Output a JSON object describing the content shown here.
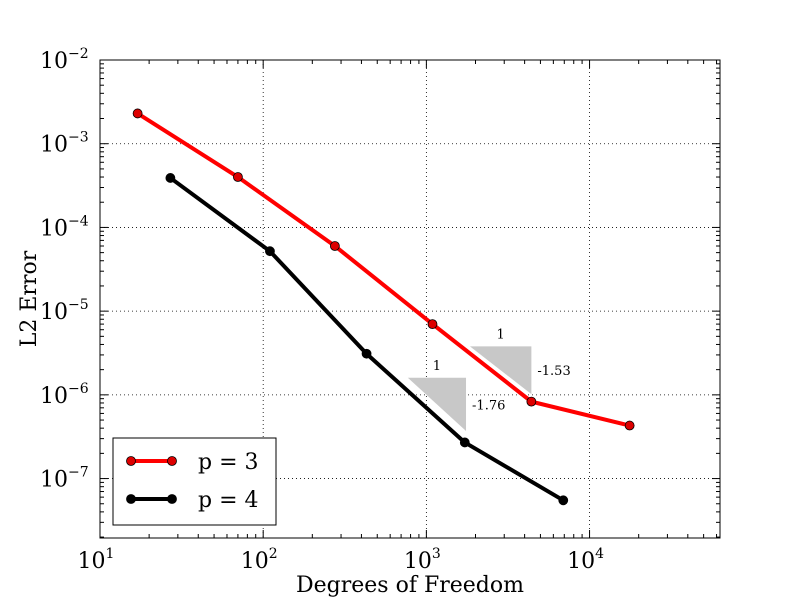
{
  "chart_data": {
    "type": "line",
    "xscale": "log",
    "yscale": "log",
    "xlabel": "Degrees of Freedom",
    "ylabel": "L2 Error",
    "xlim": [
      10,
      63000
    ],
    "ylim": [
      1.95e-08,
      0.01
    ],
    "grid": true,
    "legend_position": "bottom-left",
    "x_ticks": [
      {
        "base": "10",
        "exp": "1",
        "value": 10
      },
      {
        "base": "10",
        "exp": "2",
        "value": 100
      },
      {
        "base": "10",
        "exp": "3",
        "value": 1000
      },
      {
        "base": "10",
        "exp": "4",
        "value": 10000
      }
    ],
    "y_ticks": [
      {
        "base": "10",
        "exp": "−2",
        "value": 0.01
      },
      {
        "base": "10",
        "exp": "−3",
        "value": 0.001
      },
      {
        "base": "10",
        "exp": "−4",
        "value": 0.0001
      },
      {
        "base": "10",
        "exp": "−5",
        "value": 1e-05
      },
      {
        "base": "10",
        "exp": "−6",
        "value": 1e-06
      },
      {
        "base": "10",
        "exp": "−7",
        "value": 1e-07
      }
    ],
    "series": [
      {
        "name": "p = 3",
        "color": "#ff0000",
        "marker_color": "#dd0000",
        "x": [
          17,
          70,
          275,
          1090,
          4400,
          17600
        ],
        "y": [
          0.0023,
          0.0004,
          6e-05,
          7e-06,
          8.3e-07,
          4.3e-07
        ]
      },
      {
        "name": "p = 4",
        "color": "#000000",
        "marker_color": "#000000",
        "x": [
          27,
          110,
          430,
          1720,
          6900
        ],
        "y": [
          0.00039,
          5.2e-05,
          3.1e-06,
          2.7e-07,
          5.5e-08
        ]
      }
    ],
    "slope_triangles": [
      {
        "run_label": "1",
        "slope_label": "-1.53",
        "x0": 1850,
        "x1": 4400,
        "y_top": 3.8e-06,
        "y_bottom": 1.02e-06
      },
      {
        "run_label": "1",
        "slope_label": "-1.76",
        "x0": 770,
        "x1": 1750,
        "y_top": 1.6e-06,
        "y_bottom": 3.7e-07
      }
    ],
    "triangle_color": "#c8c8c8"
  }
}
